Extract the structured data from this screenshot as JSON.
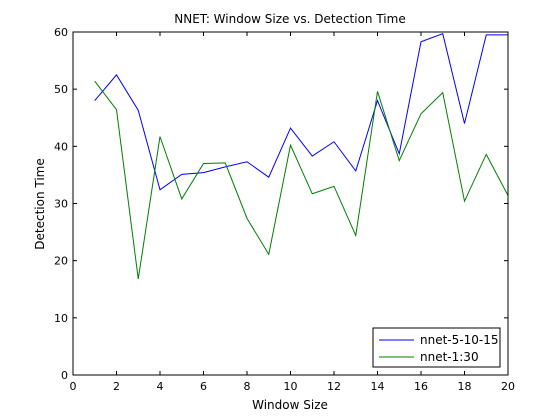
{
  "chart_data": {
    "type": "line",
    "title": "NNET: Window Size vs. Detection Time",
    "xlabel": "Window Size",
    "ylabel": "Detection Time",
    "xlim": [
      0,
      20
    ],
    "ylim": [
      0,
      60
    ],
    "xticks": [
      0,
      2,
      4,
      6,
      8,
      10,
      12,
      14,
      16,
      18,
      20
    ],
    "yticks": [
      0,
      10,
      20,
      30,
      40,
      50,
      60
    ],
    "grid": false,
    "legend_position": "bottom-right",
    "x": [
      1,
      2,
      3,
      4,
      5,
      6,
      7,
      8,
      9,
      10,
      11,
      12,
      13,
      14,
      15,
      16,
      17,
      18,
      19,
      20
    ],
    "series": [
      {
        "name": "nnet-5-10-15",
        "color": "#0000ff",
        "values": [
          48.0,
          52.5,
          46.3,
          32.4,
          35.1,
          35.4,
          36.4,
          37.3,
          34.6,
          43.2,
          38.3,
          40.8,
          35.7,
          48.0,
          38.7,
          58.3,
          59.7,
          44.0,
          59.5,
          59.5
        ]
      },
      {
        "name": "nnet-1:30",
        "color": "#007f00",
        "values": [
          51.4,
          46.4,
          16.8,
          41.7,
          30.8,
          37.0,
          37.1,
          27.4,
          21.1,
          40.2,
          31.7,
          33.0,
          24.4,
          49.6,
          37.5,
          45.7,
          49.4,
          30.4,
          38.6,
          31.4
        ]
      }
    ]
  }
}
